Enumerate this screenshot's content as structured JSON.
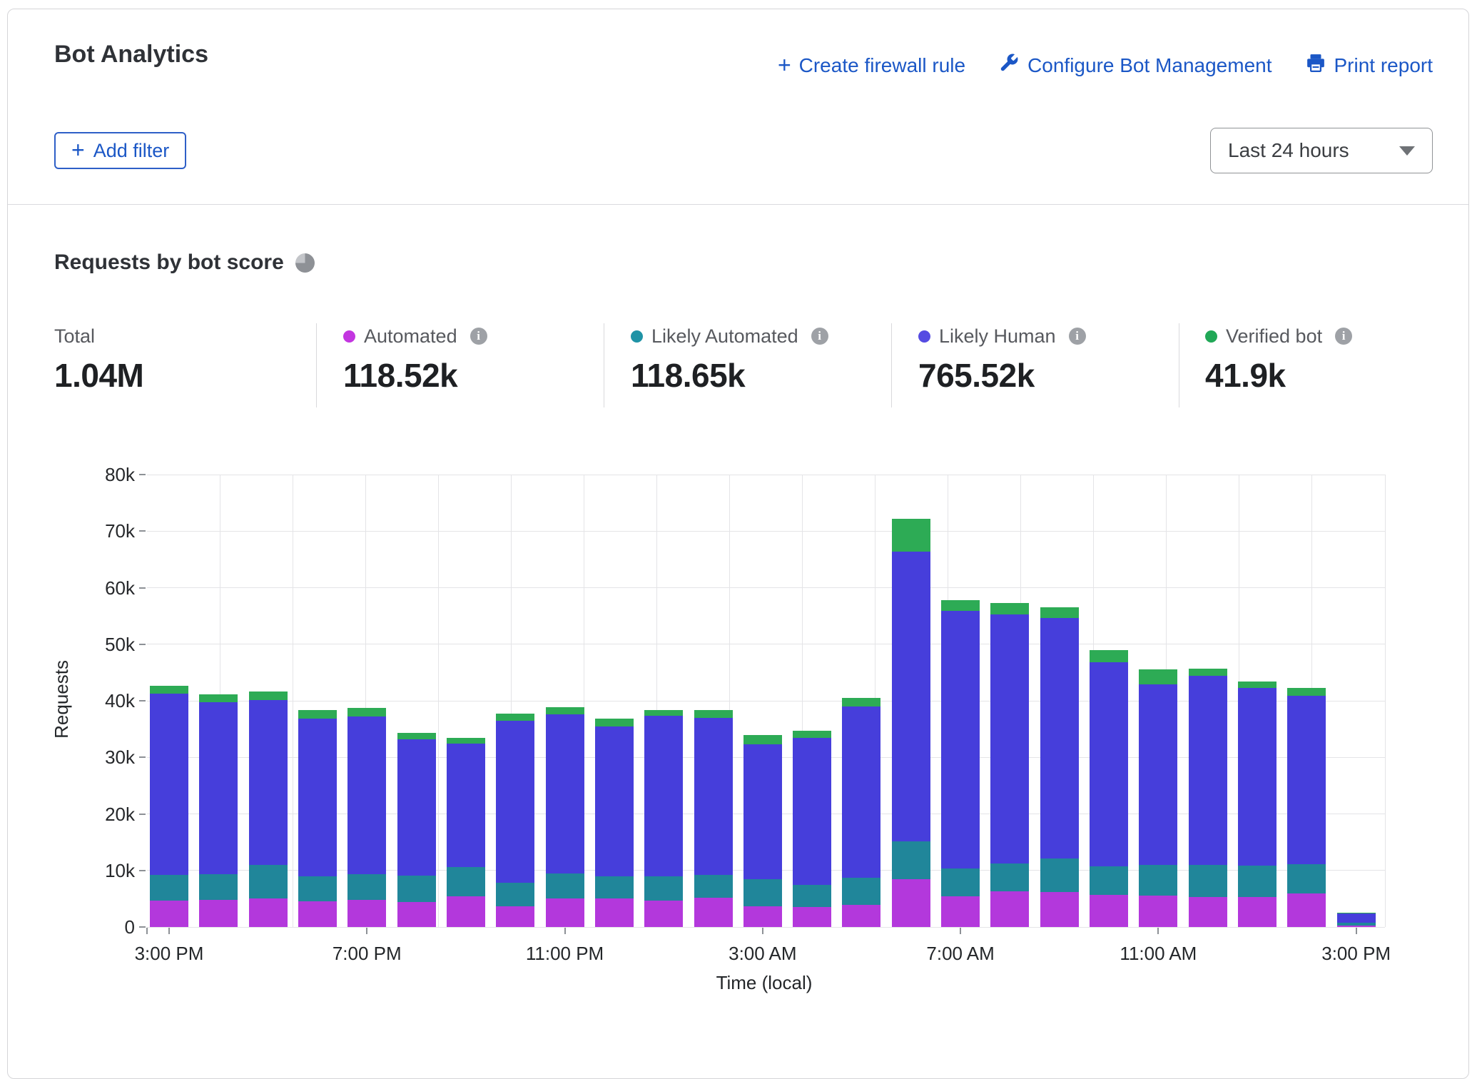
{
  "header": {
    "title": "Bot Analytics",
    "actions": [
      {
        "label": "Create firewall rule",
        "icon": "plus-icon"
      },
      {
        "label": "Configure Bot Management",
        "icon": "wrench-icon"
      },
      {
        "label": "Print report",
        "icon": "printer-icon"
      }
    ],
    "add_filter_label": "Add filter",
    "time_range_selected": "Last 24 hours"
  },
  "section": {
    "title": "Requests by bot score"
  },
  "stats": {
    "total": {
      "label": "Total",
      "value": "1.04M"
    },
    "automated": {
      "label": "Automated",
      "value": "118.52k"
    },
    "likely_automated": {
      "label": "Likely Automated",
      "value": "118.65k"
    },
    "likely_human": {
      "label": "Likely Human",
      "value": "765.52k"
    },
    "verified_bot": {
      "label": "Verified bot",
      "value": "41.9k"
    }
  },
  "colors": {
    "link_blue": "#1b57c6",
    "automated": "#b338dc",
    "automated_dot": "#c336e0",
    "likely_automated": "#20869a",
    "likely_automated_dot": "#1f93a6",
    "likely_human": "#463edb",
    "likely_human_dot": "#554be2",
    "verified_bot": "#2dab55",
    "verified_bot_dot": "#21a857"
  },
  "chart_data": {
    "type": "bar",
    "stacked": true,
    "title": "Requests by bot score",
    "xlabel": "Time (local)",
    "ylabel": "Requests",
    "unit": "thousands of requests",
    "ylim": [
      0,
      80
    ],
    "grid": true,
    "y_tick_labels": [
      "80k",
      "70k",
      "60k",
      "50k",
      "40k",
      "30k",
      "20k",
      "10k",
      "0"
    ],
    "x_tick_positions": [
      0,
      4,
      8,
      12,
      16,
      20,
      24
    ],
    "x_tick_labels": [
      "3:00 PM",
      "7:00 PM",
      "11:00 PM",
      "3:00 AM",
      "7:00 AM",
      "11:00 AM",
      "3:00 PM"
    ],
    "categories": [
      "3:00 PM",
      "4:00 PM",
      "5:00 PM",
      "6:00 PM",
      "7:00 PM",
      "8:00 PM",
      "9:00 PM",
      "10:00 PM",
      "11:00 PM",
      "12:00 AM",
      "1:00 AM",
      "2:00 AM",
      "3:00 AM",
      "4:00 AM",
      "5:00 AM",
      "6:00 AM",
      "7:00 AM",
      "8:00 AM",
      "9:00 AM",
      "10:00 AM",
      "11:00 AM",
      "12:00 PM",
      "1:00 PM",
      "2:00 PM",
      "3:00 PM"
    ],
    "series": [
      {
        "name": "Automated",
        "color_key": "automated",
        "values": [
          4.7,
          4.8,
          5.1,
          4.5,
          4.8,
          4.4,
          5.4,
          3.6,
          5.0,
          5.0,
          4.7,
          5.2,
          3.6,
          3.5,
          3.9,
          8.4,
          5.4,
          6.3,
          6.2,
          5.7,
          5.5,
          5.3,
          5.3,
          5.9,
          0.3
        ]
      },
      {
        "name": "Likely Automated",
        "color_key": "likely_automated",
        "values": [
          4.5,
          4.5,
          5.9,
          4.5,
          4.5,
          4.7,
          5.2,
          4.2,
          4.5,
          3.9,
          4.2,
          4.0,
          4.9,
          4.0,
          4.8,
          6.8,
          5.0,
          4.9,
          5.9,
          5.0,
          5.5,
          5.7,
          5.5,
          5.2,
          0.4
        ]
      },
      {
        "name": "Likely Human",
        "color_key": "likely_human",
        "values": [
          32.1,
          30.5,
          29.1,
          27.9,
          27.9,
          24.1,
          21.8,
          28.7,
          28.1,
          26.6,
          28.4,
          27.8,
          23.8,
          25.9,
          30.3,
          51.2,
          45.5,
          44.1,
          42.6,
          36.1,
          31.9,
          33.4,
          31.5,
          29.8,
          1.7
        ]
      },
      {
        "name": "Verified bot",
        "color_key": "verified_bot",
        "values": [
          1.3,
          1.4,
          1.6,
          1.5,
          1.5,
          1.1,
          1.0,
          1.2,
          1.3,
          1.3,
          1.1,
          1.4,
          1.7,
          1.3,
          1.5,
          5.8,
          1.9,
          2.0,
          1.8,
          2.1,
          2.6,
          1.3,
          1.1,
          1.4,
          0.1
        ]
      }
    ]
  }
}
